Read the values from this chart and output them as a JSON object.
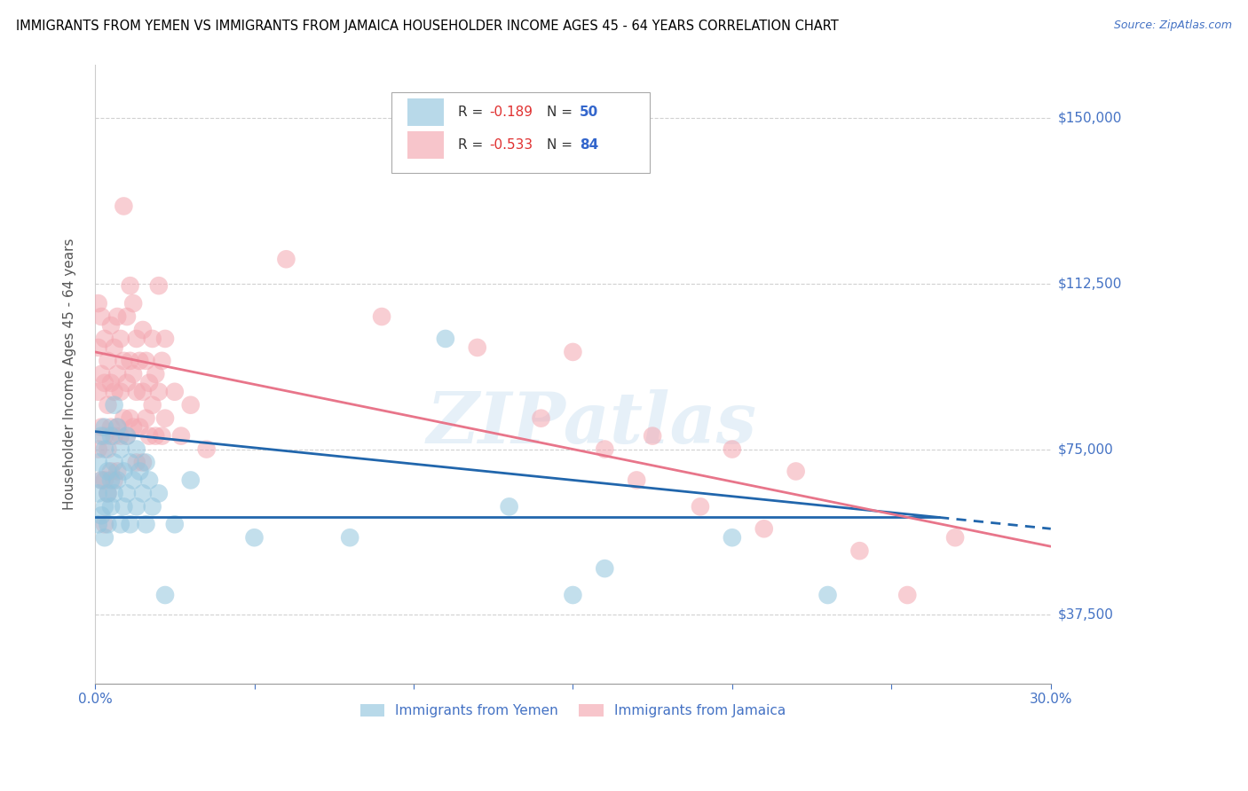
{
  "title": "IMMIGRANTS FROM YEMEN VS IMMIGRANTS FROM JAMAICA HOUSEHOLDER INCOME AGES 45 - 64 YEARS CORRELATION CHART",
  "source": "Source: ZipAtlas.com",
  "ylabel": "Householder Income Ages 45 - 64 years",
  "xlim": [
    0.0,
    0.3
  ],
  "ylim": [
    22000,
    162000
  ],
  "xticks": [
    0.0,
    0.05,
    0.1,
    0.15,
    0.2,
    0.25,
    0.3
  ],
  "xticklabels": [
    "0.0%",
    "",
    "",
    "",
    "",
    "",
    "30.0%"
  ],
  "yticks": [
    37500,
    75000,
    112500,
    150000
  ],
  "yticklabels": [
    "$37,500",
    "$75,000",
    "$112,500",
    "$150,000"
  ],
  "color_yemen": "#92c5de",
  "color_jamaica": "#f4a6b0",
  "trendline_yemen": [
    0.0,
    79000,
    0.3,
    57000
  ],
  "trendline_jamaica": [
    0.0,
    97000,
    0.3,
    53000
  ],
  "trendline_dashed_start": 0.265,
  "watermark": "ZIPatlas",
  "yemen_points": [
    [
      0.001,
      65000
    ],
    [
      0.001,
      58000
    ],
    [
      0.001,
      72000
    ],
    [
      0.002,
      68000
    ],
    [
      0.002,
      78000
    ],
    [
      0.002,
      60000
    ],
    [
      0.003,
      75000
    ],
    [
      0.003,
      62000
    ],
    [
      0.003,
      80000
    ],
    [
      0.003,
      55000
    ],
    [
      0.004,
      70000
    ],
    [
      0.004,
      65000
    ],
    [
      0.004,
      58000
    ],
    [
      0.005,
      78000
    ],
    [
      0.005,
      68000
    ],
    [
      0.005,
      62000
    ],
    [
      0.006,
      85000
    ],
    [
      0.006,
      72000
    ],
    [
      0.006,
      65000
    ],
    [
      0.007,
      80000
    ],
    [
      0.007,
      68000
    ],
    [
      0.008,
      75000
    ],
    [
      0.008,
      58000
    ],
    [
      0.009,
      70000
    ],
    [
      0.009,
      62000
    ],
    [
      0.01,
      78000
    ],
    [
      0.01,
      65000
    ],
    [
      0.011,
      72000
    ],
    [
      0.011,
      58000
    ],
    [
      0.012,
      68000
    ],
    [
      0.013,
      75000
    ],
    [
      0.013,
      62000
    ],
    [
      0.014,
      70000
    ],
    [
      0.015,
      65000
    ],
    [
      0.016,
      72000
    ],
    [
      0.016,
      58000
    ],
    [
      0.017,
      68000
    ],
    [
      0.018,
      62000
    ],
    [
      0.02,
      65000
    ],
    [
      0.022,
      42000
    ],
    [
      0.025,
      58000
    ],
    [
      0.03,
      68000
    ],
    [
      0.05,
      55000
    ],
    [
      0.08,
      55000
    ],
    [
      0.11,
      100000
    ],
    [
      0.13,
      62000
    ],
    [
      0.15,
      42000
    ],
    [
      0.16,
      48000
    ],
    [
      0.2,
      55000
    ],
    [
      0.23,
      42000
    ]
  ],
  "jamaica_points": [
    [
      0.001,
      98000
    ],
    [
      0.001,
      88000
    ],
    [
      0.001,
      108000
    ],
    [
      0.001,
      75000
    ],
    [
      0.002,
      105000
    ],
    [
      0.002,
      92000
    ],
    [
      0.002,
      80000
    ],
    [
      0.002,
      68000
    ],
    [
      0.003,
      100000
    ],
    [
      0.003,
      90000
    ],
    [
      0.003,
      78000
    ],
    [
      0.003,
      68000
    ],
    [
      0.003,
      58000
    ],
    [
      0.004,
      95000
    ],
    [
      0.004,
      85000
    ],
    [
      0.004,
      75000
    ],
    [
      0.004,
      65000
    ],
    [
      0.005,
      103000
    ],
    [
      0.005,
      90000
    ],
    [
      0.005,
      80000
    ],
    [
      0.005,
      70000
    ],
    [
      0.006,
      98000
    ],
    [
      0.006,
      88000
    ],
    [
      0.006,
      78000
    ],
    [
      0.006,
      68000
    ],
    [
      0.007,
      105000
    ],
    [
      0.007,
      92000
    ],
    [
      0.007,
      80000
    ],
    [
      0.007,
      70000
    ],
    [
      0.008,
      100000
    ],
    [
      0.008,
      88000
    ],
    [
      0.008,
      78000
    ],
    [
      0.009,
      130000
    ],
    [
      0.009,
      95000
    ],
    [
      0.009,
      82000
    ],
    [
      0.01,
      105000
    ],
    [
      0.01,
      90000
    ],
    [
      0.01,
      78000
    ],
    [
      0.011,
      112000
    ],
    [
      0.011,
      95000
    ],
    [
      0.011,
      82000
    ],
    [
      0.012,
      108000
    ],
    [
      0.012,
      92000
    ],
    [
      0.012,
      80000
    ],
    [
      0.013,
      100000
    ],
    [
      0.013,
      88000
    ],
    [
      0.013,
      72000
    ],
    [
      0.014,
      95000
    ],
    [
      0.014,
      80000
    ],
    [
      0.015,
      102000
    ],
    [
      0.015,
      88000
    ],
    [
      0.015,
      72000
    ],
    [
      0.016,
      95000
    ],
    [
      0.016,
      82000
    ],
    [
      0.017,
      90000
    ],
    [
      0.017,
      78000
    ],
    [
      0.018,
      100000
    ],
    [
      0.018,
      85000
    ],
    [
      0.019,
      92000
    ],
    [
      0.019,
      78000
    ],
    [
      0.02,
      112000
    ],
    [
      0.02,
      88000
    ],
    [
      0.021,
      95000
    ],
    [
      0.021,
      78000
    ],
    [
      0.022,
      100000
    ],
    [
      0.022,
      82000
    ],
    [
      0.025,
      88000
    ],
    [
      0.027,
      78000
    ],
    [
      0.03,
      85000
    ],
    [
      0.035,
      75000
    ],
    [
      0.06,
      118000
    ],
    [
      0.09,
      105000
    ],
    [
      0.12,
      98000
    ],
    [
      0.14,
      82000
    ],
    [
      0.15,
      97000
    ],
    [
      0.16,
      75000
    ],
    [
      0.17,
      68000
    ],
    [
      0.175,
      78000
    ],
    [
      0.19,
      62000
    ],
    [
      0.2,
      75000
    ],
    [
      0.21,
      57000
    ],
    [
      0.22,
      70000
    ],
    [
      0.24,
      52000
    ],
    [
      0.255,
      42000
    ],
    [
      0.27,
      55000
    ]
  ]
}
